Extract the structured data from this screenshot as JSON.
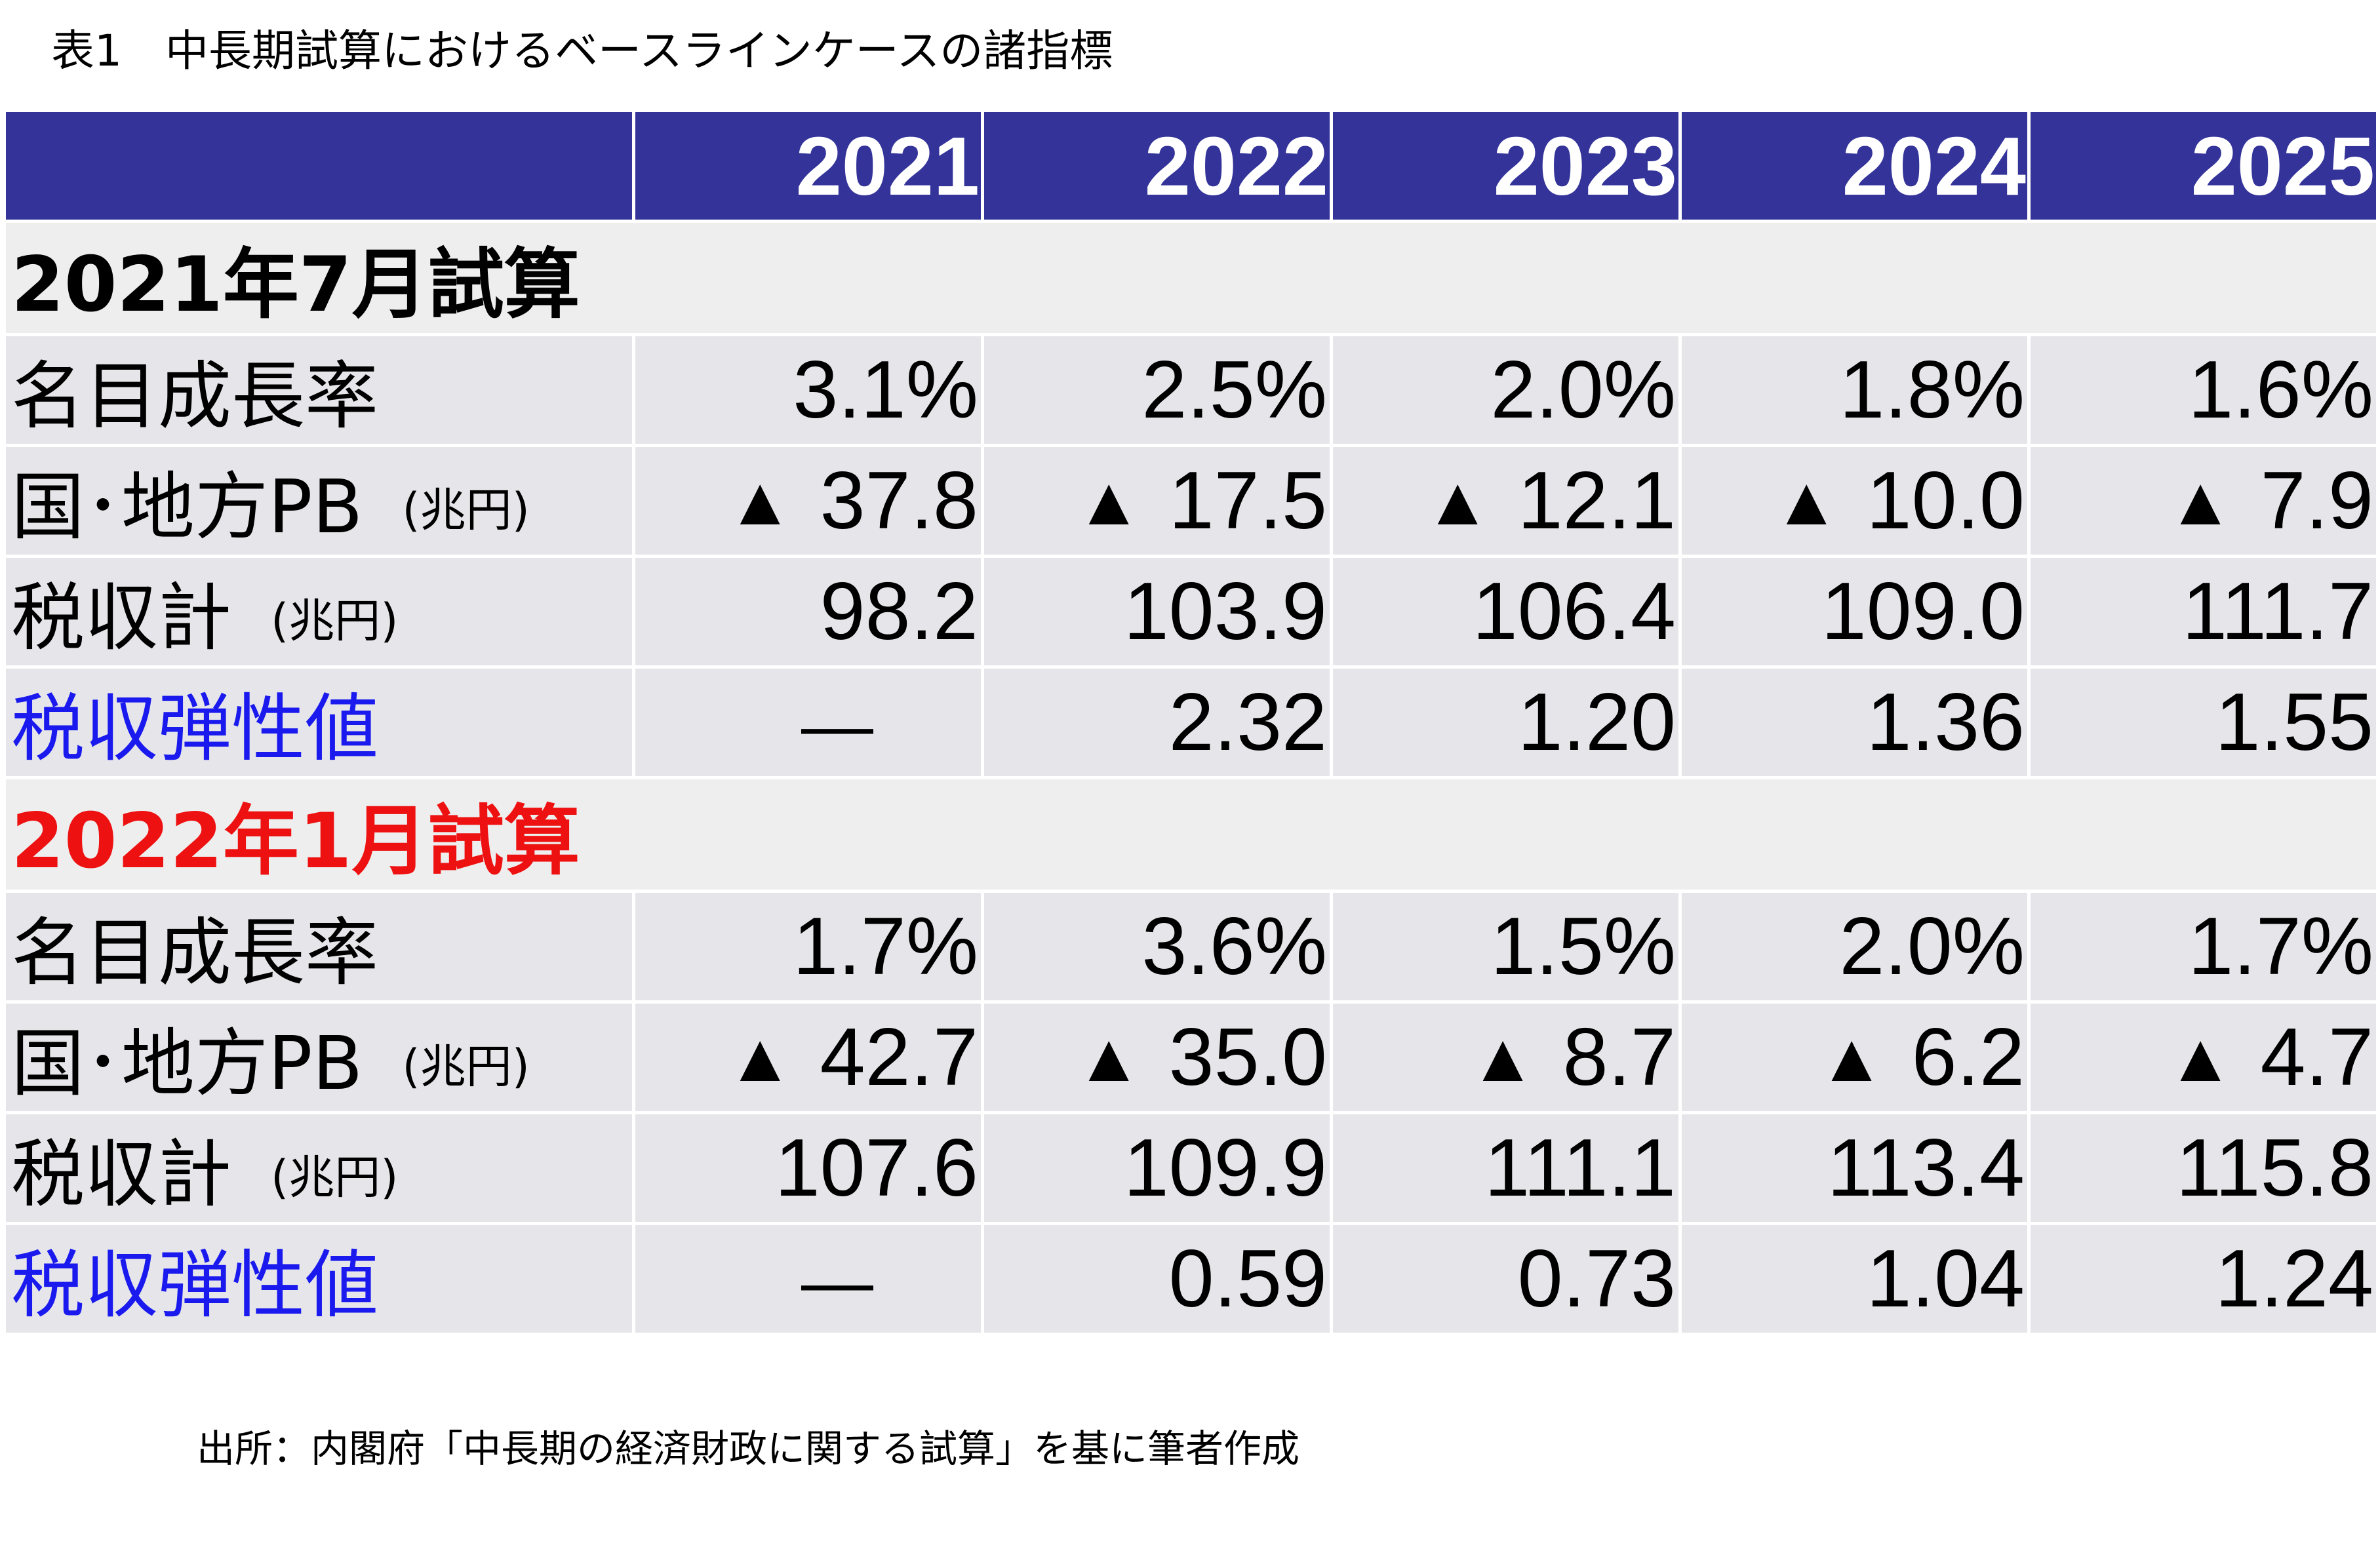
{
  "caption": "表1　中長期試算におけるベースラインケースの諸指標",
  "header": {
    "years": [
      "2021",
      "2022",
      "2023",
      "2024",
      "2025"
    ]
  },
  "sections": [
    {
      "title": "2021年7月試算",
      "title_color": "#000000",
      "rows": {
        "growth": {
          "label": "名目成長率",
          "values": [
            "3.1%",
            "2.5%",
            "2.0%",
            "1.8%",
            "1.6%"
          ]
        },
        "pb": {
          "label": "国･地方PB",
          "unit": "(兆円)",
          "marker": "▲",
          "values": [
            "37.8",
            "17.5",
            "12.1",
            "10.0",
            "7.9"
          ]
        },
        "tax": {
          "label": "税収計",
          "unit": "(兆円)",
          "values": [
            "98.2",
            "103.9",
            "106.4",
            "109.0",
            "111.7"
          ]
        },
        "elasticity": {
          "label": "税収弾性値",
          "label_color": "#1a1aee",
          "values": [
            "―",
            "2.32",
            "1.20",
            "1.36",
            "1.55"
          ]
        }
      }
    },
    {
      "title": "2022年1月試算",
      "title_color": "#ee1111",
      "rows": {
        "growth": {
          "label": "名目成長率",
          "values": [
            "1.7%",
            "3.6%",
            "1.5%",
            "2.0%",
            "1.7%"
          ]
        },
        "pb": {
          "label": "国･地方PB",
          "unit": "(兆円)",
          "marker": "▲",
          "values": [
            "42.7",
            "35.0",
            "8.7",
            "6.2",
            "4.7"
          ]
        },
        "tax": {
          "label": "税収計",
          "unit": "(兆円)",
          "values": [
            "107.6",
            "109.9",
            "111.1",
            "113.4",
            "115.8"
          ]
        },
        "elasticity": {
          "label": "税収弾性値",
          "label_color": "#1a1aee",
          "values": [
            "―",
            "0.59",
            "0.73",
            "1.04",
            "1.24"
          ]
        }
      }
    }
  ],
  "source": "出所：内閣府「中長期の経済財政に関する試算」を基に筆者作成",
  "colors": {
    "header_bg": "#333399",
    "section_bg": "#eeeeee",
    "row_bg": "#e6e6ea",
    "red_title": "#ee1111",
    "blue_label": "#1a1aee"
  }
}
